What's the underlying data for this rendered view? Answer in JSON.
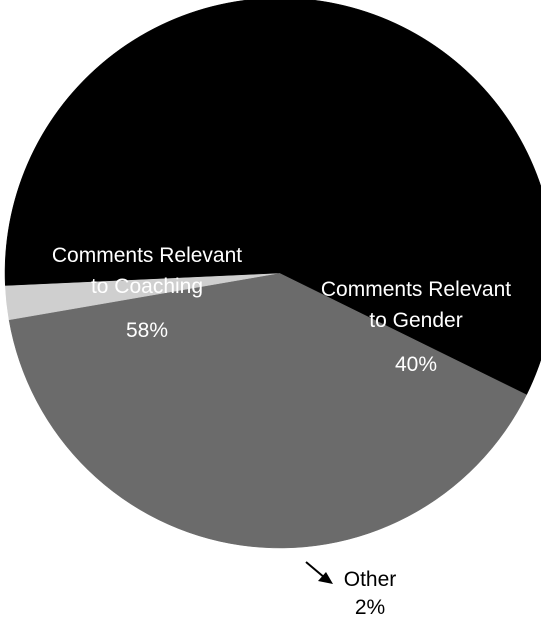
{
  "chart_data": {
    "type": "pie",
    "title": "",
    "slices": [
      {
        "label_lines": [
          "Comments Relevant",
          "to Gender"
        ],
        "value": 40,
        "value_label": "40%",
        "color": "#6b6b6b",
        "label_color": "#ffffff"
      },
      {
        "label_lines": [
          "Other"
        ],
        "value": 2,
        "value_label": "2%",
        "color": "#cfcfcf",
        "label_color": "#000000"
      },
      {
        "label_lines": [
          "Comments Relevant",
          "to Coaching"
        ],
        "value": 58,
        "value_label": "58%",
        "color": "#000000",
        "label_color": "#ffffff"
      }
    ],
    "legend": "none"
  }
}
